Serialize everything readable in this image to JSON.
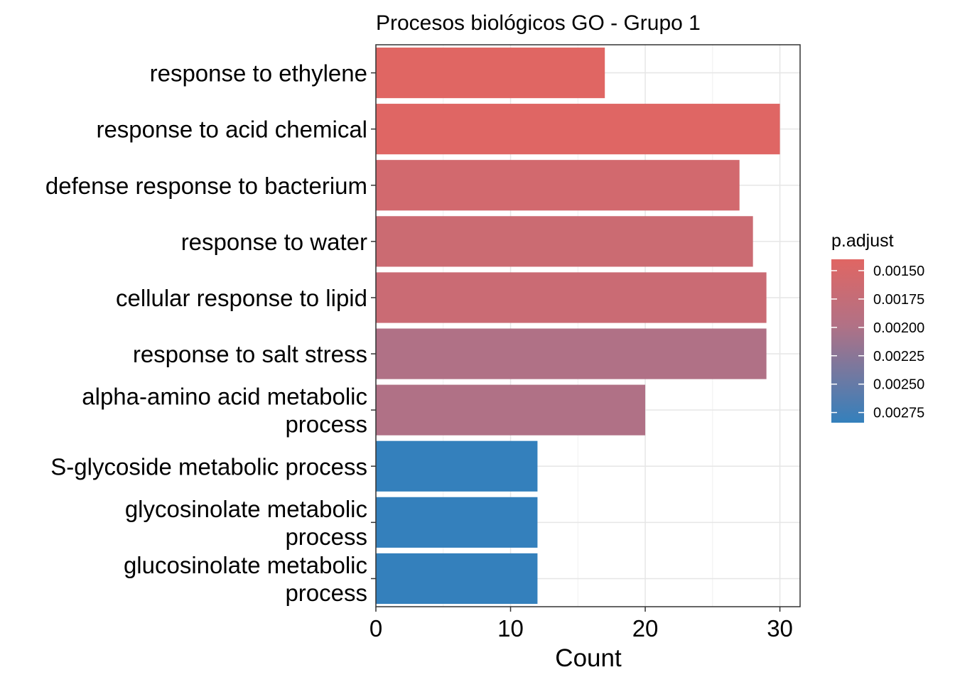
{
  "chart_data": {
    "type": "bar",
    "orientation": "horizontal",
    "title": "Procesos biológicos GO - Grupo 1",
    "xlabel": "Count",
    "ylabel": "",
    "xlim": [
      0,
      31.5
    ],
    "x_ticks": [
      0,
      10,
      20,
      30
    ],
    "grid": true,
    "categories": [
      [
        "response to ethylene"
      ],
      [
        "response to acid chemical"
      ],
      [
        "defense response to bacterium"
      ],
      [
        "response to water"
      ],
      [
        "cellular response to lipid"
      ],
      [
        "response to salt stress"
      ],
      [
        "alpha-amino acid metabolic",
        "process"
      ],
      [
        "S-glycoside metabolic process"
      ],
      [
        "glycosinolate metabolic",
        "process"
      ],
      [
        "glucosinolate metabolic",
        "process"
      ]
    ],
    "values": [
      17,
      30,
      27,
      28,
      29,
      29,
      20,
      12,
      12,
      12
    ],
    "p_adjust": [
      0.0014,
      0.00141,
      0.00158,
      0.00166,
      0.00168,
      0.00199,
      0.00199,
      0.00284,
      0.00284,
      0.00284
    ],
    "legend": {
      "title": "p.adjust",
      "position": "right",
      "range": [
        0.0014,
        0.00284
      ],
      "ticks": [
        0.0015,
        0.00175,
        0.002,
        0.00225,
        0.0025,
        0.00275
      ],
      "tick_labels": [
        "0.00150",
        "0.00175",
        "0.00200",
        "0.00225",
        "0.00250",
        "0.00275"
      ],
      "low_color": "#E06663",
      "mid_color": "#B27185",
      "high_color": "#3480BC"
    }
  }
}
